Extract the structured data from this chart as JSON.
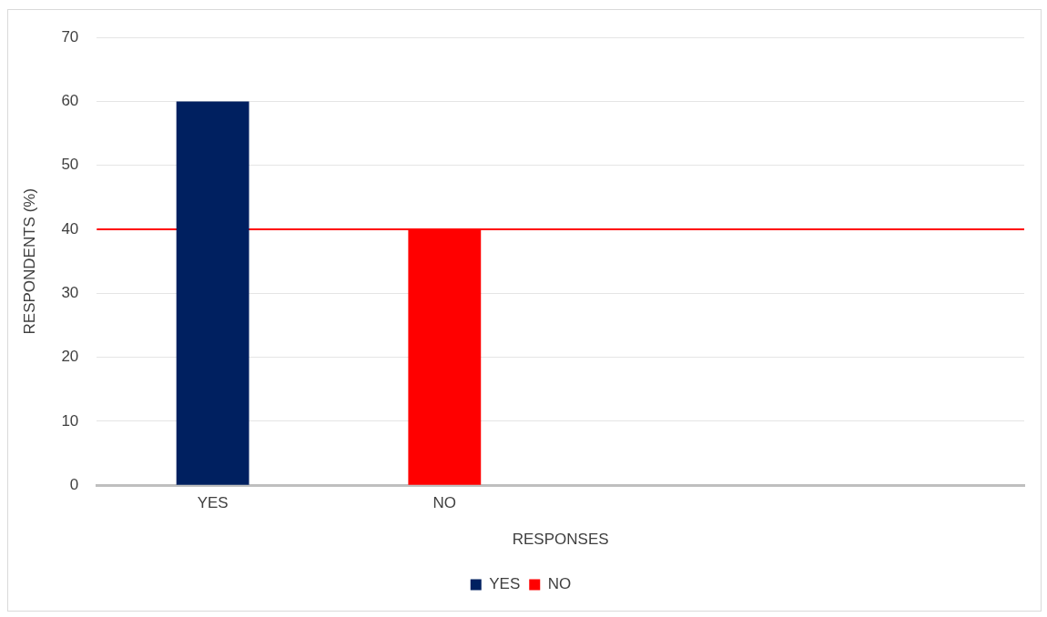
{
  "chart_data": {
    "type": "bar",
    "xlabel": "RESPONSES",
    "ylabel": "RESPONDENTS (%)",
    "categories": [
      "YES",
      "NO",
      null,
      null
    ],
    "series": [
      {
        "name": "YES",
        "color": "#002060",
        "values": [
          60,
          null,
          null,
          null
        ]
      },
      {
        "name": "NO",
        "color": "#ff0000",
        "values": [
          null,
          40,
          null,
          null
        ]
      }
    ],
    "stacked": true,
    "ylim": [
      0,
      70
    ],
    "yticks": [
      0,
      10,
      20,
      30,
      40,
      50,
      60,
      70
    ],
    "ref_lines": [
      {
        "axis": "y",
        "value": 40,
        "color": "#ff0000"
      }
    ],
    "grid": "y",
    "legend": "bottom"
  }
}
